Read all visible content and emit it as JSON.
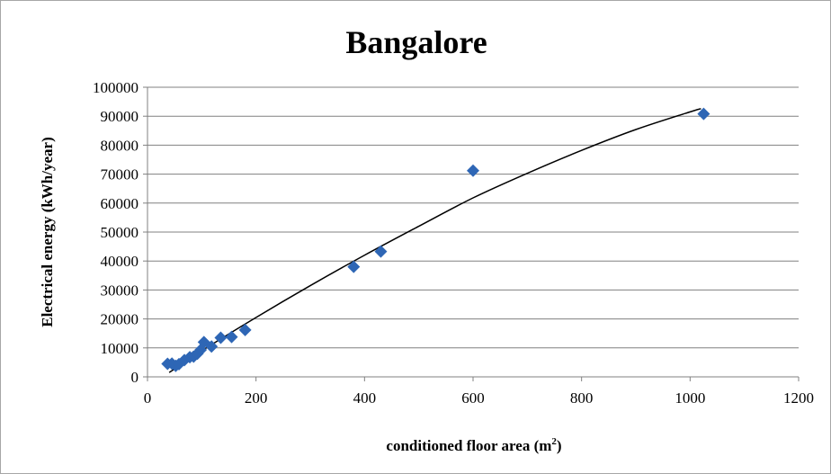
{
  "chart_data": {
    "type": "scatter",
    "title": "Bangalore",
    "xlabel": "conditioned floor area (m",
    "xlabel_sup": "2",
    "xlabel_end": ")",
    "ylabel": "Electrical energy  (kWh/year)",
    "xlim": [
      0,
      1200
    ],
    "ylim": [
      0,
      100000
    ],
    "x_ticks": [
      0,
      200,
      400,
      600,
      800,
      1000,
      1200
    ],
    "y_ticks": [
      0,
      10000,
      20000,
      30000,
      40000,
      50000,
      60000,
      70000,
      80000,
      90000,
      100000
    ],
    "grid": "horizontal",
    "marker_color": "#2e66b5",
    "trendline_color": "#000000",
    "points": [
      {
        "x": 37,
        "y": 4500
      },
      {
        "x": 45,
        "y": 4600
      },
      {
        "x": 52,
        "y": 3800
      },
      {
        "x": 58,
        "y": 4400
      },
      {
        "x": 68,
        "y": 5800
      },
      {
        "x": 78,
        "y": 6800
      },
      {
        "x": 85,
        "y": 7000
      },
      {
        "x": 92,
        "y": 8000
      },
      {
        "x": 98,
        "y": 9300
      },
      {
        "x": 104,
        "y": 12000
      },
      {
        "x": 118,
        "y": 10500
      },
      {
        "x": 135,
        "y": 13500
      },
      {
        "x": 155,
        "y": 13800
      },
      {
        "x": 180,
        "y": 16200
      },
      {
        "x": 380,
        "y": 38000
      },
      {
        "x": 430,
        "y": 43300
      },
      {
        "x": 600,
        "y": 71200
      },
      {
        "x": 1025,
        "y": 90800
      }
    ],
    "trendline": [
      {
        "x": 40,
        "y": 1500
      },
      {
        "x": 100,
        "y": 9000
      },
      {
        "x": 200,
        "y": 20500
      },
      {
        "x": 300,
        "y": 31500
      },
      {
        "x": 400,
        "y": 42000
      },
      {
        "x": 500,
        "y": 52000
      },
      {
        "x": 600,
        "y": 61800
      },
      {
        "x": 700,
        "y": 70300
      },
      {
        "x": 800,
        "y": 78200
      },
      {
        "x": 900,
        "y": 85400
      },
      {
        "x": 1000,
        "y": 91500
      },
      {
        "x": 1020,
        "y": 92600
      }
    ]
  }
}
